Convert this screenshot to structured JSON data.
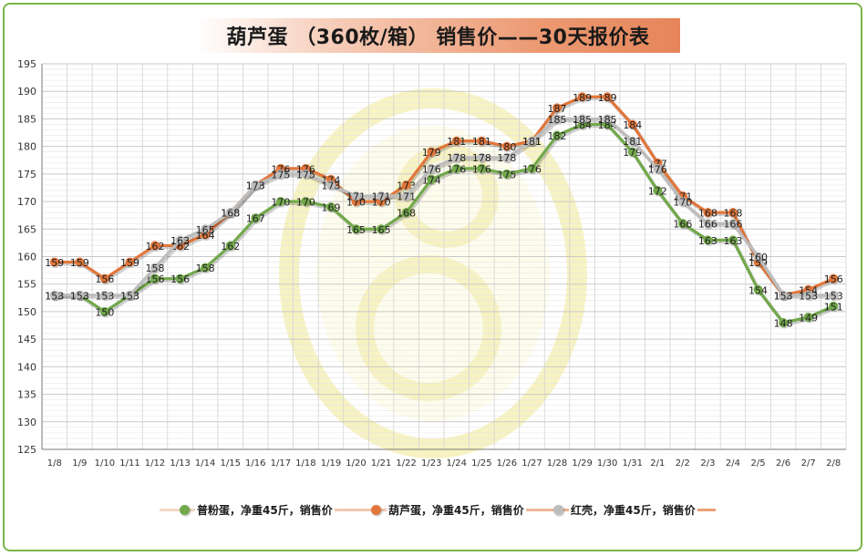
{
  "title": "葫芦蛋 （360枚/箱） 销售价——30天报价表",
  "colors": {
    "green": "#72a94b",
    "orange": "#e2763a",
    "gray": "#bdbdbd",
    "frame": "#7ab648"
  },
  "chart_data": {
    "type": "line",
    "title": "葫芦蛋 （360枚/箱） 销售价——30天报价表",
    "ylim": [
      125,
      195
    ],
    "yticks": [
      125,
      130,
      135,
      140,
      145,
      150,
      155,
      160,
      165,
      170,
      175,
      180,
      185,
      190,
      195
    ],
    "grid": true,
    "legend_position": "bottom",
    "categories": [
      "1/8",
      "1/9",
      "1/10",
      "1/11",
      "1/12",
      "1/13",
      "1/14",
      "1/15",
      "1/16",
      "1/17",
      "1/18",
      "1/19",
      "1/20",
      "1/21",
      "1/22",
      "1/23",
      "1/24",
      "1/25",
      "1/26",
      "1/27",
      "1/28",
      "1/29",
      "1/30",
      "1/31",
      "2/1",
      "2/2",
      "2/3",
      "2/4",
      "2/5",
      "2/6",
      "2/7",
      "2/8"
    ],
    "series": [
      {
        "name": "普粉蛋，净重45斤，销售价",
        "color": "#72a94b",
        "values": [
          153,
          153,
          150,
          153,
          156,
          156,
          158,
          162,
          167,
          170,
          170,
          169,
          165,
          165,
          168,
          174,
          176,
          176,
          175,
          176,
          182,
          184,
          184,
          179,
          172,
          166,
          163,
          163,
          154,
          148,
          149,
          151
        ]
      },
      {
        "name": "葫芦蛋，净重45斤，销售价",
        "color": "#e2763a",
        "values": [
          159,
          159,
          156,
          159,
          162,
          162,
          164,
          168,
          173,
          176,
          176,
          174,
          170,
          170,
          173,
          179,
          181,
          181,
          180,
          181,
          187,
          189,
          189,
          184,
          177,
          171,
          168,
          168,
          159,
          153,
          154,
          156
        ]
      },
      {
        "name": "红壳，净重45斤，销售价",
        "color": "#bdbdbd",
        "values": [
          153,
          153,
          153,
          153,
          158,
          163,
          165,
          168,
          173,
          175,
          175,
          173,
          171,
          171,
          171,
          176,
          178,
          178,
          178,
          181,
          185,
          185,
          185,
          181,
          176,
          170,
          166,
          166,
          160,
          153,
          153,
          153
        ]
      }
    ]
  }
}
